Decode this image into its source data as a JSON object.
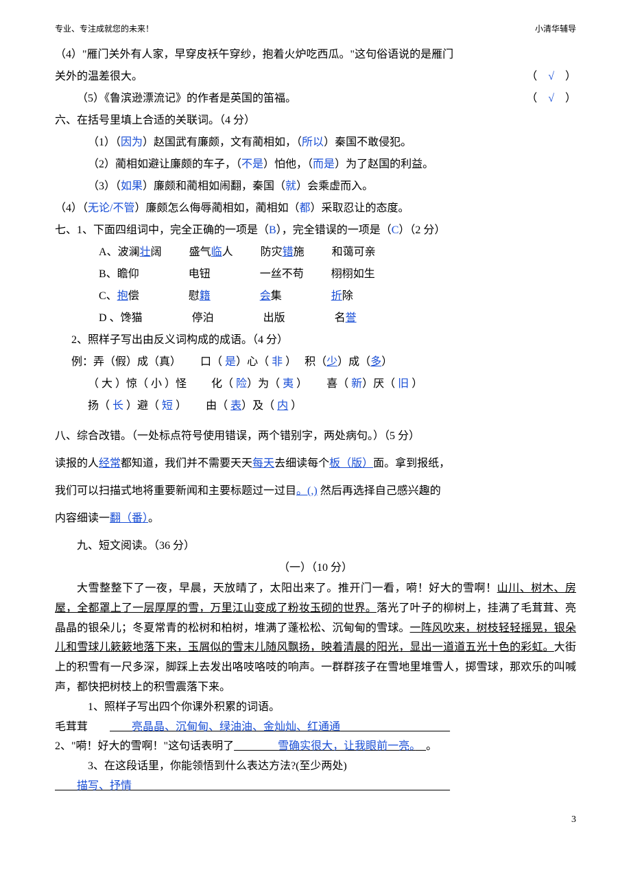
{
  "header": {
    "left": "专业、专注成就您的未来！",
    "right": "小清华辅导"
  },
  "q4": {
    "text_a": "（4）\"雁门关外有人家，早穿皮袄午穿纱，抱着火炉吃西瓜。\"这句俗语说的是雁门",
    "text_b": "关外的温差很大。",
    "mark": "√"
  },
  "q5": {
    "text": "（5）《鲁滨逊漂流记》的作者是英国的笛福。",
    "mark": "√"
  },
  "sec6": {
    "title": "六、在括号里填上合适的关联词。（4 分）",
    "items": [
      {
        "pre": "（1）（",
        "a1": "因为",
        "mid1": "）赵国武有廉颇，文有蔺相如，（",
        "a2": "所以",
        "mid2": "）秦国不敢侵犯。"
      },
      {
        "pre": "（2）蔺相如避让廉颇的车子，（",
        "a1": "不是",
        "mid1": "）怕他，（",
        "a2": "而是",
        "mid2": "）为了赵国的利益。"
      },
      {
        "pre": "（3）（",
        "a1": "如果",
        "mid1": "）廉颇和蔺相如闹翻，秦国（",
        "a2": "就",
        "mid2": "）会乘虚而入。"
      },
      {
        "pre": "（4）（",
        "a1": "无论/不管",
        "mid1": "）廉颇怎么侮辱蔺相如，蔺相如（",
        "a2": "都",
        "mid2": "）采取忍让的态度。"
      }
    ]
  },
  "sec7": {
    "title_a": "七、1、下面四组词中，完全正确的一项是（",
    "ans1": "B",
    "title_b": "），完全错误的一项是（",
    "ans2": "C",
    "title_c": "）（2 分）",
    "rows": [
      {
        "label": "A、",
        "t": [
          {
            "p": "波澜",
            "b": "壮",
            "s": "阔"
          },
          {
            "p": "盛气",
            "b": "临",
            "s": "人"
          },
          {
            "p": "防灾",
            "b": "错",
            "s": "施"
          },
          {
            "p": "和蔼可亲",
            "b": "",
            "s": ""
          }
        ]
      },
      {
        "label": "B、",
        "t": [
          {
            "p": "瞻仰",
            "b": "",
            "s": ""
          },
          {
            "p": "电钮",
            "b": "",
            "s": ""
          },
          {
            "p": "一丝不苟",
            "b": "",
            "s": ""
          },
          {
            "p": "栩栩如生",
            "b": "",
            "s": ""
          }
        ]
      },
      {
        "label": "C、",
        "t": [
          {
            "p": "",
            "b": "抱",
            "s": "偿"
          },
          {
            "p": "慰",
            "b": "籍",
            "s": ""
          },
          {
            "p": "",
            "b": "会",
            "s": "集"
          },
          {
            "p": "",
            "b": "折",
            "s": "除"
          }
        ]
      },
      {
        "label": "D 、",
        "t": [
          {
            "p": "馋猫",
            "b": "",
            "s": ""
          },
          {
            "p": "停泊",
            "b": "",
            "s": ""
          },
          {
            "p": "出版",
            "b": "",
            "s": ""
          },
          {
            "p": "名",
            "b": "誉",
            "s": ""
          }
        ]
      }
    ],
    "sub2_title": "2、照样子写出由反义词构成的成语。（4 分）",
    "ex_label": "例：弄（假）成（真）",
    "idioms": [
      {
        "tpl": "口（ ",
        "a1": "是",
        "mid": "）心（ ",
        "a2": "非",
        "end": " ）"
      },
      {
        "tpl": "积（",
        "a1": "少",
        "mid": "）成（",
        "a2": "多",
        "end": "）"
      },
      {
        "tpl": "（ 大 ）惊（ 小 ）怪",
        "plain": true
      },
      {
        "tpl": "化（ ",
        "a1": "险",
        "mid": "）为（ ",
        "a2": "夷",
        "end": " ）"
      },
      {
        "tpl": "喜（ ",
        "a1": "新",
        "mid": "）厌（ ",
        "a2": "旧",
        "end": " ）"
      },
      {
        "tpl": "扬（ ",
        "a1": "长",
        "mid": " ）避（ ",
        "a2": "短",
        "end": " ）"
      },
      {
        "tpl": "由（ ",
        "a1": "表",
        "mid": "）及（ ",
        "a2": "内",
        "end": " ）"
      }
    ]
  },
  "sec8": {
    "title": "八、综合改错。（一处标点符号使用错误，两个错别字，两处病句。）（5 分）",
    "line1_a": "读报的人",
    "strike1": "经常",
    "line1_b": "都知道，我们并不需要天天",
    "strike2": "每天",
    "line1_c": "去细读每个",
    "corr1": "板（版）",
    "line1_d": "面。拿到报纸，",
    "line2_a": "我们可以扫描式地将重要新闻和主要标题过一过目",
    "corr2": "。(,)",
    "line2_b": " 然后再选择自己感兴趣的",
    "line3_a": "内容细读一",
    "corr3": "翻（番）",
    "line3_b": "。"
  },
  "sec9": {
    "title": "九、短文阅读。（36 分）",
    "subtitle": "（一）（10 分）",
    "passage_a": "大雪整整下了一夜，早晨，天放晴了，太阳出来了。推开门一看，嗬！好大的雪啊！",
    "passage_u1": "山川、树木、房屋，全都罩上了一层厚厚的雪，万里江山变成了粉妆玉砌的世界。",
    "passage_b": "落光了叶子的柳树上，挂满了毛茸茸、亮晶晶的银朵儿；冬夏常青的松树和柏树，堆满了蓬松松、沉甸甸的雪球。",
    "passage_u2": "一阵风吹来，树枝轻轻摇晃，银朵儿和雪球儿簌簌地落下来，玉屑似的雪末儿随风飘扬，映着清晨的阳光，显出一道道五光十色的彩虹。",
    "passage_c": "大街上的积雪有一尺多深，脚踩上去发出咯吱咯吱的响声。一群群孩子在雪地里堆雪人，掷雪球，那欢乐的叫喊声，都快把树枝上的积雪震落下来。",
    "q1_label": "1、照样子写出四个你课外积累的词语。",
    "q1_example": "毛茸茸",
    "q1_ans": "亮晶晶、沉甸甸、绿油油、金灿灿、红通通",
    "q2_a": "2、\"嗬！好大的雪啊！\"这句话表明了",
    "q2_ans": "雪确实很大，让我眼前一亮。",
    "q2_b": "。",
    "q3_label": "3、在这段话里，你能领悟到什么表达方法?(至少两处)",
    "q3_ans": "描写、抒情"
  },
  "page_num": "3"
}
